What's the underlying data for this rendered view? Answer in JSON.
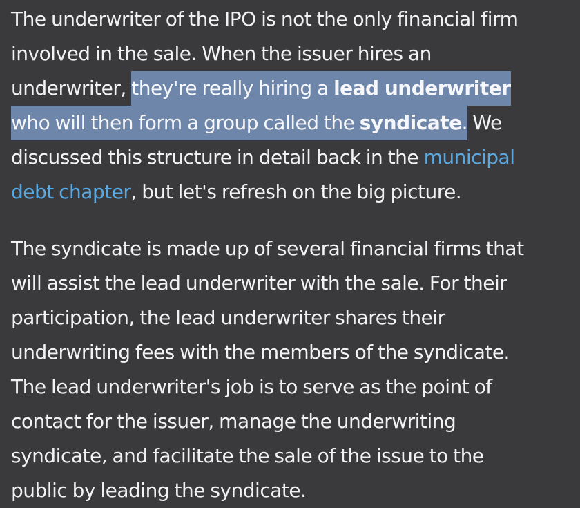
{
  "paragraph1": {
    "line1": "The underwriter of the IPO is not the only financial firm",
    "line2": "involved in the sale. When the issuer hires an",
    "line3_pre": "underwriter, ",
    "line3_hl": "they're really hiring a ",
    "line3_bold": "lead underwriter",
    "line4_hl": "who will then form a group called the ",
    "line4_bold": "syndicate",
    "line4_hl_end": ".",
    "line4_post": " We",
    "line5_pre": "discussed this structure in detail back in the ",
    "line5_link": "municipal",
    "line6_link": "debt chapter",
    "line6_post": ", but let's refresh on the big picture."
  },
  "paragraph2": {
    "lines": [
      "The syndicate is made up of several financial firms that",
      "will assist the lead underwriter with the sale. For their",
      "participation, the lead underwriter shares their",
      "underwriting fees with the members of the syndicate.",
      "The lead underwriter's job is to serve as the point of",
      "contact for the issuer, manage the underwriting",
      "syndicate, and facilitate the sale of the issue to the",
      "public by leading the syndicate."
    ]
  },
  "colors": {
    "background": "#3a3a3c",
    "text": "#f2f2f4",
    "highlight": "#6f86ab",
    "link": "#5aa8e0"
  }
}
